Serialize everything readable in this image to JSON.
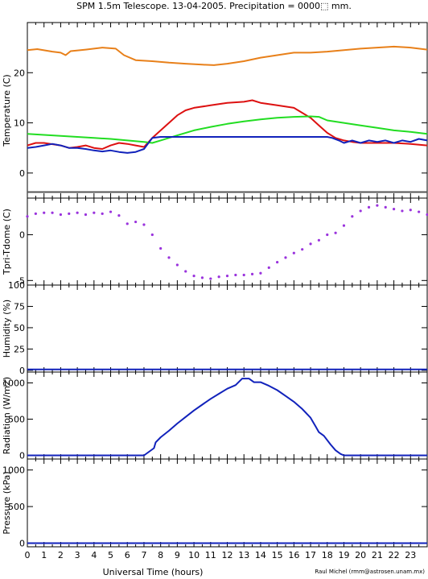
{
  "title": "SPM 1.5m Telescope. 13-04-2005. Precipitation = 0000⬚ mm.",
  "xlabel": "Universal Time (hours)",
  "credit": "Raul Michel (rmm@astrosen.unam.mx)",
  "xticks": [
    "0",
    "1",
    "2",
    "3",
    "4",
    "5",
    "6",
    "7",
    "8",
    "9",
    "10",
    "11",
    "12",
    "13",
    "14",
    "15",
    "16",
    "17",
    "18",
    "19",
    "20",
    "21",
    "22",
    "23"
  ],
  "colors": {
    "orange": "#e8801a",
    "red": "#dd1111",
    "green": "#22dd22",
    "blue": "#1122bb",
    "purple": "#9a33dd",
    "grey": "#555555"
  },
  "chart_data": [
    {
      "type": "line",
      "ylabel": "Temperature (C)",
      "xlim": [
        0,
        24
      ],
      "ylim": [
        -5,
        30
      ],
      "yticks": [
        "0",
        "10",
        "20"
      ],
      "series": [
        {
          "color": "orange",
          "x": [
            0,
            0.6,
            1.5,
            2.0,
            2.3,
            2.6,
            3.5,
            4.5,
            5.3,
            5.8,
            6.5,
            7.5,
            8.5,
            9.5,
            10.5,
            11.2,
            12,
            13,
            14,
            15,
            16,
            17,
            18,
            19,
            20,
            21,
            22,
            23,
            24
          ],
          "y": [
            24.5,
            24.7,
            24.2,
            24.0,
            23.5,
            24.3,
            24.6,
            25.0,
            24.8,
            23.5,
            22.5,
            22.3,
            22.0,
            21.8,
            21.6,
            21.5,
            21.8,
            22.3,
            23.0,
            23.5,
            24.0,
            24.0,
            24.2,
            24.5,
            24.8,
            25.0,
            25.2,
            25.0,
            24.6
          ]
        },
        {
          "color": "red",
          "x": [
            0,
            0.5,
            1,
            2,
            2.5,
            3,
            3.5,
            4,
            4.5,
            5,
            5.5,
            6,
            6.5,
            7,
            7.5,
            8,
            8.5,
            9,
            9.5,
            10,
            11,
            12,
            13,
            13.5,
            14,
            15,
            16,
            16.5,
            17,
            17.5,
            18,
            18.5,
            19,
            19.5,
            20,
            21,
            22,
            23,
            24
          ],
          "y": [
            5.5,
            6.0,
            6.0,
            5.5,
            5.0,
            5.2,
            5.5,
            5.0,
            4.8,
            5.5,
            6.0,
            5.8,
            5.5,
            5.2,
            7.0,
            8.5,
            10.0,
            11.5,
            12.5,
            13.0,
            13.5,
            14.0,
            14.2,
            14.5,
            14.0,
            13.5,
            13.0,
            12.0,
            11.0,
            9.5,
            8.0,
            7.0,
            6.5,
            6.2,
            6.0,
            6.0,
            6.0,
            5.8,
            5.5
          ]
        },
        {
          "color": "green",
          "x": [
            0,
            1,
            2,
            3,
            4,
            5,
            6,
            7,
            7.5,
            8,
            9,
            10,
            11,
            12,
            13,
            14,
            15,
            16,
            17,
            17.5,
            18,
            19,
            20,
            21,
            22,
            23,
            24
          ],
          "y": [
            7.8,
            7.6,
            7.4,
            7.2,
            7.0,
            6.8,
            6.5,
            6.2,
            6.0,
            6.5,
            7.5,
            8.5,
            9.2,
            9.8,
            10.3,
            10.7,
            11.0,
            11.2,
            11.3,
            11.2,
            10.5,
            10.0,
            9.5,
            9.0,
            8.5,
            8.2,
            7.8
          ]
        },
        {
          "color": "blue",
          "x": [
            0,
            0.5,
            1,
            1.5,
            2,
            2.5,
            3,
            3.5,
            4,
            4.5,
            5,
            5.5,
            6,
            6.5,
            7,
            7.5,
            8,
            10,
            12,
            14,
            16,
            18,
            18.3,
            18.7,
            19,
            19.5,
            20,
            20.5,
            21,
            21.5,
            22,
            22.5,
            23,
            23.5,
            24
          ],
          "y": [
            5.0,
            5.2,
            5.5,
            5.8,
            5.5,
            5.0,
            5.0,
            4.8,
            4.5,
            4.3,
            4.5,
            4.2,
            4.0,
            4.2,
            4.8,
            7.0,
            7.2,
            7.2,
            7.2,
            7.2,
            7.2,
            7.2,
            7.0,
            6.5,
            6.0,
            6.5,
            6.0,
            6.5,
            6.2,
            6.5,
            6.0,
            6.5,
            6.2,
            6.8,
            6.5
          ]
        },
        {
          "color": "grey",
          "x": [
            0,
            24
          ],
          "y": [
            -3.8,
            -3.8
          ]
        }
      ]
    },
    {
      "type": "scatter",
      "ylabel": "Tpri-Tdome (C)",
      "xlim": [
        0,
        24
      ],
      "ylim": [
        -5.5,
        4
      ],
      "yticks": [
        "-5",
        "0"
      ],
      "series": [
        {
          "color": "purple",
          "x": [
            0,
            0.5,
            1,
            1.5,
            2,
            2.5,
            3,
            3.5,
            4,
            4.5,
            5,
            5.5,
            6,
            6.5,
            7,
            7.5,
            8,
            8.5,
            9,
            9.5,
            10,
            10.5,
            11,
            11.5,
            12,
            12.5,
            13,
            13.5,
            14,
            14.5,
            15,
            15.5,
            16,
            16.5,
            17,
            17.5,
            18,
            18.5,
            19,
            19.5,
            20,
            20.5,
            21,
            21.5,
            22,
            22.5,
            23,
            23.5,
            24
          ],
          "y": [
            2.0,
            2.3,
            2.4,
            2.4,
            2.2,
            2.3,
            2.4,
            2.2,
            2.4,
            2.3,
            2.5,
            2.1,
            1.2,
            1.4,
            1.1,
            0.0,
            -1.5,
            -2.5,
            -3.3,
            -4.0,
            -4.5,
            -4.7,
            -4.8,
            -4.6,
            -4.5,
            -4.4,
            -4.4,
            -4.3,
            -4.2,
            -3.6,
            -3.0,
            -2.5,
            -2.0,
            -1.6,
            -1.0,
            -0.6,
            0.0,
            0.2,
            1.0,
            2.0,
            2.6,
            3.0,
            3.2,
            3.0,
            2.8,
            2.6,
            2.7,
            2.5,
            2.2
          ]
        }
      ]
    },
    {
      "type": "line",
      "ylabel": "Humidity (%)",
      "xlim": [
        0,
        24
      ],
      "ylim": [
        -2,
        100
      ],
      "yticks": [
        "0",
        "25",
        "50",
        "75",
        "100"
      ],
      "series": [
        {
          "color": "blue",
          "x": [
            0,
            24
          ],
          "y": [
            1,
            1
          ]
        }
      ]
    },
    {
      "type": "line",
      "ylabel": "Radiation (W/m2)",
      "xlim": [
        0,
        24
      ],
      "ylim": [
        -50,
        1150
      ],
      "yticks": [
        "0",
        "500",
        "1000"
      ],
      "series": [
        {
          "color": "blue",
          "x": [
            0,
            7.0,
            7.3,
            7.6,
            7.7,
            8,
            8.5,
            9,
            9.5,
            10,
            10.5,
            11,
            11.5,
            12,
            12.5,
            12.9,
            13.3,
            13.6,
            14,
            14.5,
            15,
            15.5,
            16,
            16.5,
            17,
            17.3,
            17.5,
            17.8,
            18.2,
            18.5,
            18.8,
            19.0,
            24
          ],
          "y": [
            0,
            0,
            50,
            100,
            180,
            250,
            340,
            440,
            530,
            620,
            700,
            780,
            850,
            920,
            970,
            1060,
            1060,
            1010,
            1010,
            960,
            900,
            820,
            740,
            640,
            520,
            400,
            320,
            270,
            150,
            70,
            20,
            0,
            0
          ]
        }
      ]
    },
    {
      "type": "line",
      "ylabel": "Pressure (kPa)",
      "xlim": [
        0,
        24
      ],
      "ylim": [
        -50,
        1150
      ],
      "yticks": [
        "0",
        "500",
        "1000"
      ],
      "series": [
        {
          "color": "blue",
          "x": [
            0,
            24
          ],
          "y": [
            0,
            0
          ]
        }
      ]
    }
  ]
}
